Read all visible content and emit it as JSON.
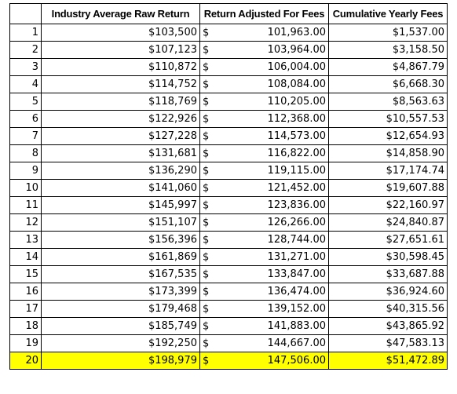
{
  "table": {
    "headers": {
      "year": "",
      "raw": "Industry Average Raw Return",
      "adjusted": "Return Adjusted For Fees",
      "fees": "Cumulative Yearly Fees"
    },
    "highlight_color": "#ffff00",
    "rows": [
      {
        "year": "1",
        "raw": "$103,500",
        "currency": "$",
        "adjusted": "101,963.00",
        "fees": "$1,537.00"
      },
      {
        "year": "2",
        "raw": "$107,123",
        "currency": "$",
        "adjusted": "103,964.00",
        "fees": "$3,158.50"
      },
      {
        "year": "3",
        "raw": "$110,872",
        "currency": "$",
        "adjusted": "106,004.00",
        "fees": "$4,867.79"
      },
      {
        "year": "4",
        "raw": "$114,752",
        "currency": "$",
        "adjusted": "108,084.00",
        "fees": "$6,668.30"
      },
      {
        "year": "5",
        "raw": "$118,769",
        "currency": "$",
        "adjusted": "110,205.00",
        "fees": "$8,563.63"
      },
      {
        "year": "6",
        "raw": "$122,926",
        "currency": "$",
        "adjusted": "112,368.00",
        "fees": "$10,557.53"
      },
      {
        "year": "7",
        "raw": "$127,228",
        "currency": "$",
        "adjusted": "114,573.00",
        "fees": "$12,654.93"
      },
      {
        "year": "8",
        "raw": "$131,681",
        "currency": "$",
        "adjusted": "116,822.00",
        "fees": "$14,858.90"
      },
      {
        "year": "9",
        "raw": "$136,290",
        "currency": "$",
        "adjusted": "119,115.00",
        "fees": "$17,174.74"
      },
      {
        "year": "10",
        "raw": "$141,060",
        "currency": "$",
        "adjusted": "121,452.00",
        "fees": "$19,607.88"
      },
      {
        "year": "11",
        "raw": "$145,997",
        "currency": "$",
        "adjusted": "123,836.00",
        "fees": "$22,160.97"
      },
      {
        "year": "12",
        "raw": "$151,107",
        "currency": "$",
        "adjusted": "126,266.00",
        "fees": "$24,840.87"
      },
      {
        "year": "13",
        "raw": "$156,396",
        "currency": "$",
        "adjusted": "128,744.00",
        "fees": "$27,651.61"
      },
      {
        "year": "14",
        "raw": "$161,869",
        "currency": "$",
        "adjusted": "131,271.00",
        "fees": "$30,598.45"
      },
      {
        "year": "15",
        "raw": "$167,535",
        "currency": "$",
        "adjusted": "133,847.00",
        "fees": "$33,687.88"
      },
      {
        "year": "16",
        "raw": "$173,399",
        "currency": "$",
        "adjusted": "136,474.00",
        "fees": "$36,924.60"
      },
      {
        "year": "17",
        "raw": "$179,468",
        "currency": "$",
        "adjusted": "139,152.00",
        "fees": "$40,315.56"
      },
      {
        "year": "18",
        "raw": "$185,749",
        "currency": "$",
        "adjusted": "141,883.00",
        "fees": "$43,865.92"
      },
      {
        "year": "19",
        "raw": "$192,250",
        "currency": "$",
        "adjusted": "144,667.00",
        "fees": "$47,583.13"
      },
      {
        "year": "20",
        "raw": "$198,979",
        "currency": "$",
        "adjusted": "147,506.00",
        "fees": "$51,472.89",
        "highlight": true
      }
    ]
  }
}
